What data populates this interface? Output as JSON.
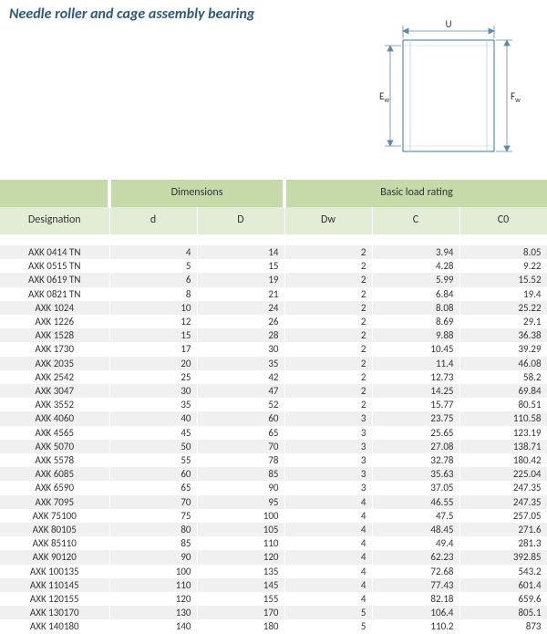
{
  "title": "Needle roller and cage assembly bearing",
  "diagram": {
    "labels": {
      "U": "U",
      "Ew": "E",
      "Ew_sub": "w",
      "Fw": "F",
      "Fw_sub": "w"
    },
    "stroke": "#5b8bb2",
    "stroke_light": "#b9cfe0"
  },
  "table": {
    "group_headers": [
      {
        "label": "",
        "span": 1
      },
      {
        "label": "Dimensions",
        "span": 2
      },
      {
        "label": "Basic load rating",
        "span": 3
      }
    ],
    "columns": [
      "Designation",
      "d",
      "D",
      "Dw",
      "C",
      "C0"
    ],
    "rows": [
      [
        "AXK 0414 TN",
        "4",
        "14",
        "2",
        "3.94",
        "8.05"
      ],
      [
        "AXK 0515 TN",
        "5",
        "15",
        "2",
        "4.28",
        "9.22"
      ],
      [
        "AXK 0619 TN",
        "6",
        "19",
        "2",
        "5.99",
        "15.52"
      ],
      [
        "AXK 0821 TN",
        "8",
        "21",
        "2",
        "6.84",
        "19.4"
      ],
      [
        "AXK 1024",
        "10",
        "24",
        "2",
        "8.08",
        "25.22"
      ],
      [
        "AXK 1226",
        "12",
        "26",
        "2",
        "8.69",
        "29.1"
      ],
      [
        "AXK 1528",
        "15",
        "28",
        "2",
        "9.88",
        "36.38"
      ],
      [
        "AXK 1730",
        "17",
        "30",
        "2",
        "10.45",
        "39.29"
      ],
      [
        "AXK 2035",
        "20",
        "35",
        "2",
        "11.4",
        "46.08"
      ],
      [
        "AXK 2542",
        "25",
        "42",
        "2",
        "12.73",
        "58.2"
      ],
      [
        "AXK 3047",
        "30",
        "47",
        "2",
        "14.25",
        "69.84"
      ],
      [
        "AXK 3552",
        "35",
        "52",
        "2",
        "15.77",
        "80.51"
      ],
      [
        "AXK 4060",
        "40",
        "60",
        "3",
        "23.75",
        "110.58"
      ],
      [
        "AXK 4565",
        "45",
        "65",
        "3",
        "25.65",
        "123.19"
      ],
      [
        "AXK 5070",
        "50",
        "70",
        "3",
        "27.08",
        "138.71"
      ],
      [
        "AXK 5578",
        "55",
        "78",
        "3",
        "32.78",
        "180.42"
      ],
      [
        "AXK 6085",
        "60",
        "85",
        "3",
        "35.63",
        "225.04"
      ],
      [
        "AXK 6590",
        "65",
        "90",
        "3",
        "37.05",
        "247.35"
      ],
      [
        "AXK 7095",
        "70",
        "95",
        "4",
        "46.55",
        "247.35"
      ],
      [
        "AXK 75100",
        "75",
        "100",
        "4",
        "47.5",
        "257.05"
      ],
      [
        "AXK 80105",
        "80",
        "105",
        "4",
        "48.45",
        "271.6"
      ],
      [
        "AXK 85110",
        "85",
        "110",
        "4",
        "49.4",
        "281.3"
      ],
      [
        "AXK 90120",
        "90",
        "120",
        "4",
        "62.23",
        "392.85"
      ],
      [
        "AXK 100135",
        "100",
        "135",
        "4",
        "72.68",
        "543.2"
      ],
      [
        "AXK 110145",
        "110",
        "145",
        "4",
        "77.43",
        "601.4"
      ],
      [
        "AXK 120155",
        "120",
        "155",
        "4",
        "82.18",
        "659.6"
      ],
      [
        "AXK 130170",
        "130",
        "170",
        "5",
        "106.4",
        "805.1"
      ],
      [
        "AXK 140180",
        "140",
        "180",
        "5",
        "110.2",
        "873"
      ]
    ]
  }
}
